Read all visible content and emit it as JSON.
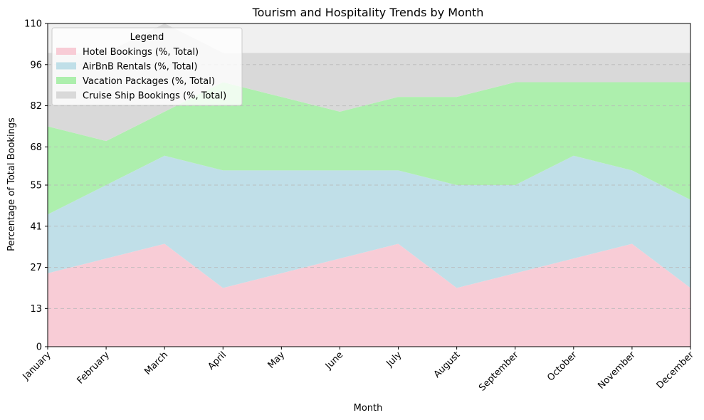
{
  "chart_data": {
    "type": "area",
    "stacked": true,
    "title": "Tourism and Hospitality Trends by Month",
    "xlabel": "Month",
    "ylabel": "Percentage of Total Bookings",
    "categories": [
      "January",
      "February",
      "March",
      "April",
      "May",
      "June",
      "July",
      "August",
      "September",
      "October",
      "November",
      "December"
    ],
    "ylim": [
      0,
      110
    ],
    "yticks": [
      0,
      13,
      27,
      41,
      55,
      68,
      82,
      96,
      110
    ],
    "grid": "horizontal-dashed",
    "legend": {
      "title": "Legend",
      "placement": "top-left"
    },
    "background_band": {
      "from": 100,
      "to": 110,
      "color": "#f0f0f0"
    },
    "series": [
      {
        "name": "Hotel Bookings (%, Total)",
        "color": "#f8ccd6",
        "values": [
          25,
          30,
          35,
          20,
          25,
          30,
          35,
          20,
          25,
          30,
          35,
          20
        ]
      },
      {
        "name": "AirBnB Rentals (%, Total)",
        "color": "#c0dfe8",
        "values": [
          20,
          25,
          30,
          40,
          35,
          30,
          25,
          35,
          30,
          35,
          25,
          30
        ]
      },
      {
        "name": "Vacation Packages (%, Total)",
        "color": "#adefad",
        "values": [
          30,
          15,
          15,
          30,
          25,
          20,
          25,
          30,
          35,
          25,
          30,
          40
        ]
      },
      {
        "name": "Cruise Ship Bookings (%, Total)",
        "color": "#d9d9d9",
        "values": [
          25,
          30,
          30,
          10,
          15,
          20,
          15,
          15,
          10,
          10,
          10,
          10
        ]
      }
    ]
  }
}
